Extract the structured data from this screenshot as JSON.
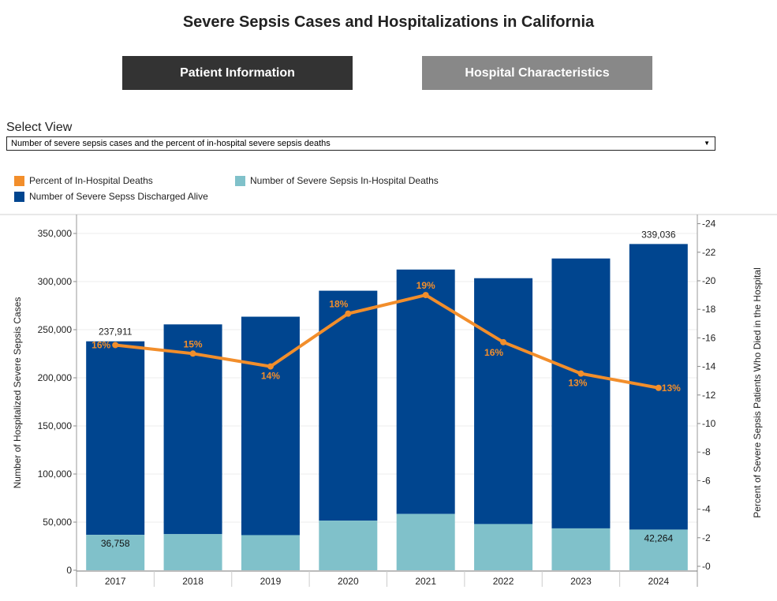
{
  "title": "Severe Sepsis Cases and Hospitalizations in California",
  "nav": {
    "patient_label": "Patient Information",
    "hospital_label": "Hospital Characteristics"
  },
  "select_view": {
    "label": "Select View",
    "selected": "Number of severe sepsis cases and the percent of in-hospital severe sepsis deaths"
  },
  "colors": {
    "discharged": "#00458f",
    "deaths": "#80c1ca",
    "percent": "#f28e2b"
  },
  "chart_data": {
    "type": "bar",
    "stacked": true,
    "categories": [
      "2017",
      "2018",
      "2019",
      "2020",
      "2021",
      "2022",
      "2023",
      "2024"
    ],
    "series": [
      {
        "name": "Number of Severe Sepsis In-Hospital Deaths",
        "values": [
          36758,
          37500,
          36500,
          51500,
          58500,
          48000,
          43500,
          42264
        ]
      },
      {
        "name": "Number of Severe Sepss Discharged Alive",
        "values": [
          201153,
          218000,
          227000,
          239000,
          254000,
          255500,
          280500,
          296772
        ]
      }
    ],
    "line_series": {
      "name": "Percent of In-Hospital Deaths",
      "values": [
        15.5,
        14.9,
        14.0,
        17.7,
        19.0,
        15.7,
        13.5,
        12.5
      ],
      "labels": [
        "16%",
        "15%",
        "14%",
        "18%",
        "19%",
        "16%",
        "13%",
        "13%"
      ]
    },
    "total_labels": [
      {
        "index": 0,
        "text": "237,911"
      },
      {
        "index": 7,
        "text": "339,036"
      }
    ],
    "bottom_labels": [
      {
        "index": 0,
        "text": "36,758"
      },
      {
        "index": 7,
        "text": "42,264"
      }
    ],
    "ylabel": "Number of Hospitalized Severe Sepsis Cases",
    "y2label": "Percent of Severe Sepsis Patients Who Died in the Hospital",
    "ylim": [
      0,
      350000
    ],
    "y_ticks": [
      0,
      50000,
      100000,
      150000,
      200000,
      250000,
      300000,
      350000
    ],
    "y_tick_labels": [
      "0",
      "50,000",
      "100,000",
      "150,000",
      "200,000",
      "250,000",
      "300,000",
      "350,000"
    ],
    "y2lim": [
      0,
      24
    ],
    "y2_ticks": [
      0,
      2,
      4,
      6,
      8,
      10,
      12,
      14,
      16,
      18,
      20,
      22,
      24
    ],
    "y2_tick_labels": [
      "0",
      "2",
      "4",
      "6",
      "8",
      "10",
      "12",
      "14",
      "16",
      "18",
      "20",
      "22",
      "24"
    ],
    "legend": [
      {
        "label": "Percent of In-Hospital Deaths"
      },
      {
        "label": "Number of Severe Sepsis In-Hospital Deaths"
      },
      {
        "label": "Number of Severe Sepss Discharged Alive"
      }
    ]
  }
}
